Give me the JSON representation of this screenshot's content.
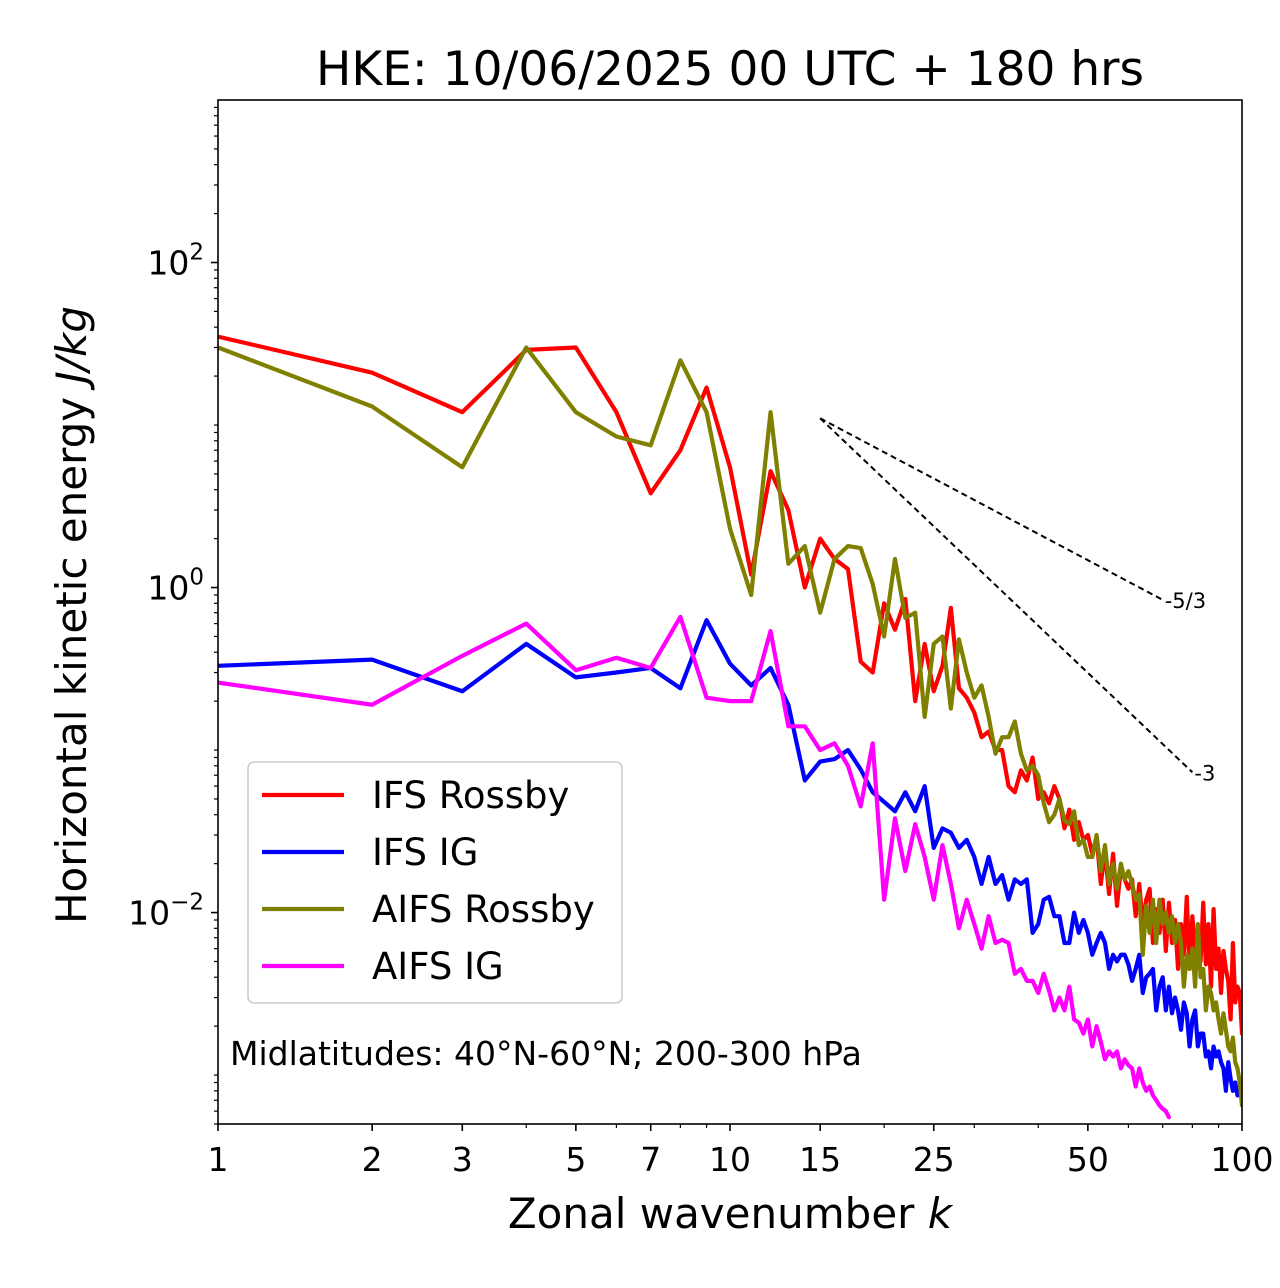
{
  "chart_data": {
    "type": "line",
    "title": "HKE: 10/06/2025 00 UTC + 180 hrs",
    "xlabel_text": "Zonal wavenumber ",
    "xlabel_var": "k",
    "ylabel_text": "Horizontal kinetic energy ",
    "ylabel_unit": "J/kg",
    "xscale": "log",
    "yscale": "log",
    "xlim": [
      1,
      100
    ],
    "ylim": [
      0.0005,
      1000
    ],
    "x_ticks": [
      1,
      2,
      3,
      5,
      7,
      10,
      15,
      25,
      50,
      100
    ],
    "x_tick_labels": [
      "1",
      "2",
      "3",
      "5",
      "7",
      "10",
      "15",
      "25",
      "50",
      "100"
    ],
    "y_ticks": [
      0.01,
      1,
      100
    ],
    "y_tick_base": [
      "10",
      "10",
      "10"
    ],
    "y_tick_exp": [
      "−2",
      "0",
      "2"
    ],
    "grid": false,
    "legend_position": "lower-left",
    "annotation": "Midlatitudes: 40°N-60°N; 200-300 hPa",
    "colors": {
      "ifs_rossby": "#ff0000",
      "ifs_ig": "#0000ff",
      "aifs_rossby": "#808000",
      "aifs_ig": "#ff00ff"
    },
    "reference_slopes": [
      {
        "label": "-5/3",
        "x": [
          15,
          70
        ],
        "y": [
          11,
          0.84
        ]
      },
      {
        "label": "-3",
        "x": [
          15,
          80
        ],
        "y": [
          11,
          0.073
        ]
      }
    ],
    "series": [
      {
        "name": "IFS Rossby",
        "color": "#ff0000",
        "x": [
          1,
          2,
          3,
          4,
          5,
          6,
          7,
          8,
          9,
          10,
          11,
          12,
          13,
          14,
          15,
          16,
          17,
          18,
          19,
          20,
          21,
          22,
          23,
          24,
          25,
          26,
          27,
          28,
          29,
          30,
          31,
          32,
          33,
          34,
          35,
          36,
          37,
          38,
          39,
          40,
          41,
          42,
          43,
          44,
          45,
          46,
          47,
          48,
          49,
          50,
          51,
          52,
          53,
          54,
          55,
          56,
          57,
          58,
          59,
          60,
          61,
          62,
          63,
          64,
          65,
          66,
          67,
          68,
          69,
          70,
          71,
          72,
          73,
          74,
          75,
          76,
          77,
          78,
          79,
          80,
          81,
          82,
          83,
          84,
          85,
          86,
          87,
          88,
          89,
          90,
          91,
          92,
          93,
          94,
          95,
          96,
          97,
          98,
          99,
          100
        ],
        "y": [
          35,
          21,
          12,
          29,
          30,
          12,
          3.8,
          7,
          17,
          5.5,
          1.2,
          5.2,
          3.0,
          1.0,
          2.0,
          1.5,
          1.3,
          0.35,
          0.3,
          0.8,
          0.55,
          0.85,
          0.2,
          0.45,
          0.23,
          0.33,
          0.75,
          0.24,
          0.21,
          0.17,
          0.12,
          0.13,
          0.1,
          0.1,
          0.06,
          0.055,
          0.075,
          0.065,
          0.09,
          0.05,
          0.055,
          0.047,
          0.06,
          0.05,
          0.033,
          0.043,
          0.028,
          0.036,
          0.028,
          0.03,
          0.023,
          0.029,
          0.015,
          0.024,
          0.013,
          0.023,
          0.011,
          0.019,
          0.016,
          0.014,
          0.016,
          0.0095,
          0.015,
          0.0085,
          0.012,
          0.014,
          0.0065,
          0.0105,
          0.0075,
          0.012,
          0.0058,
          0.0115,
          0.0065,
          0.009,
          0.0045,
          0.0085,
          0.0055,
          0.0125,
          0.0045,
          0.0095,
          0.0055,
          0.0075,
          0.005,
          0.0115,
          0.0048,
          0.0085,
          0.0035,
          0.0105,
          0.0045,
          0.006,
          0.0032,
          0.0058,
          0.0045,
          0.0038,
          0.0022,
          0.0065,
          0.0028,
          0.0035,
          0.0032,
          0.0018
        ]
      },
      {
        "name": "IFS IG",
        "color": "#0000ff",
        "x": [
          1,
          2,
          3,
          4,
          5,
          6,
          7,
          8,
          9,
          10,
          11,
          12,
          13,
          14,
          15,
          16,
          17,
          18,
          19,
          20,
          21,
          22,
          23,
          24,
          25,
          26,
          27,
          28,
          29,
          30,
          31,
          32,
          33,
          34,
          35,
          36,
          37,
          38,
          39,
          40,
          41,
          42,
          43,
          44,
          45,
          46,
          47,
          48,
          49,
          50,
          51,
          52,
          53,
          54,
          55,
          56,
          57,
          58,
          59,
          60,
          61,
          62,
          63,
          64,
          65,
          66,
          67,
          68,
          69,
          70,
          71,
          72,
          73,
          74,
          75,
          76,
          77,
          78,
          79,
          80,
          81,
          82,
          83,
          84,
          85,
          86,
          87,
          88,
          89,
          90,
          91,
          92,
          93,
          94,
          95,
          96,
          97,
          98,
          99,
          100
        ],
        "y": [
          0.33,
          0.36,
          0.23,
          0.45,
          0.28,
          0.3,
          0.32,
          0.24,
          0.63,
          0.34,
          0.25,
          0.32,
          0.19,
          0.065,
          0.085,
          0.088,
          0.1,
          0.076,
          0.055,
          0.048,
          0.042,
          0.055,
          0.042,
          0.06,
          0.025,
          0.033,
          0.031,
          0.025,
          0.028,
          0.022,
          0.015,
          0.022,
          0.015,
          0.017,
          0.012,
          0.016,
          0.015,
          0.016,
          0.0075,
          0.0085,
          0.012,
          0.0125,
          0.0095,
          0.0095,
          0.0065,
          0.0065,
          0.01,
          0.0075,
          0.009,
          0.0075,
          0.0055,
          0.0065,
          0.0075,
          0.0065,
          0.0045,
          0.0055,
          0.005,
          0.0055,
          0.0055,
          0.0048,
          0.0038,
          0.0045,
          0.0055,
          0.0032,
          0.004,
          0.0042,
          0.0045,
          0.0025,
          0.0035,
          0.004,
          0.0025,
          0.0035,
          0.0024,
          0.003,
          0.0025,
          0.0019,
          0.0028,
          0.0024,
          0.0015,
          0.0022,
          0.0025,
          0.0015,
          0.0018,
          0.0018,
          0.0013,
          0.0014,
          0.0011,
          0.0015,
          0.0013,
          0.0014,
          0.0012,
          0.0011,
          0.0008,
          0.0012,
          0.00095,
          0.0008,
          0.0009,
          0.00075,
          0.0008,
          0.00085
        ]
      },
      {
        "name": "AIFS Rossby",
        "color": "#808000",
        "x": [
          1,
          2,
          3,
          4,
          5,
          6,
          7,
          8,
          9,
          10,
          11,
          12,
          13,
          14,
          15,
          16,
          17,
          18,
          19,
          20,
          21,
          22,
          23,
          24,
          25,
          26,
          27,
          28,
          29,
          30,
          31,
          32,
          33,
          34,
          35,
          36,
          37,
          38,
          39,
          40,
          41,
          42,
          43,
          44,
          45,
          46,
          47,
          48,
          49,
          50,
          51,
          52,
          53,
          54,
          55,
          56,
          57,
          58,
          59,
          60,
          61,
          62,
          63,
          64,
          65,
          66,
          67,
          68,
          69,
          70,
          71,
          72,
          73,
          74,
          75,
          76,
          77,
          78,
          79,
          80,
          81,
          82,
          83,
          84,
          85,
          86,
          87,
          88,
          89,
          90,
          91,
          92,
          93,
          94,
          95,
          96,
          97,
          98,
          99,
          100
        ],
        "y": [
          30,
          13,
          5.5,
          30,
          12,
          8.5,
          7.5,
          25,
          12,
          2.3,
          0.9,
          12,
          1.4,
          1.8,
          0.7,
          1.5,
          1.8,
          1.75,
          1.05,
          0.5,
          1.5,
          0.65,
          0.7,
          0.16,
          0.45,
          0.5,
          0.18,
          0.48,
          0.3,
          0.21,
          0.25,
          0.16,
          0.095,
          0.12,
          0.12,
          0.15,
          0.095,
          0.075,
          0.08,
          0.07,
          0.047,
          0.036,
          0.04,
          0.05,
          0.037,
          0.035,
          0.042,
          0.026,
          0.028,
          0.022,
          0.022,
          0.03,
          0.018,
          0.026,
          0.015,
          0.02,
          0.014,
          0.02,
          0.016,
          0.018,
          0.015,
          0.012,
          0.013,
          0.0055,
          0.011,
          0.0075,
          0.012,
          0.0065,
          0.012,
          0.0085,
          0.01,
          0.0075,
          0.0095,
          0.0065,
          0.0085,
          0.0065,
          0.0035,
          0.0055,
          0.0045,
          0.006,
          0.0035,
          0.0085,
          0.004,
          0.0045,
          0.0025,
          0.0035,
          0.0032,
          0.0025,
          0.0028,
          0.0022,
          0.0018,
          0.0024,
          0.0019,
          0.0015,
          0.0014,
          0.0017,
          0.0012,
          0.0011,
          0.0009,
          0.00065
        ]
      },
      {
        "name": "AIFS IG",
        "color": "#ff00ff",
        "x": [
          1,
          2,
          3,
          4,
          5,
          6,
          7,
          8,
          9,
          10,
          11,
          12,
          13,
          14,
          15,
          16,
          17,
          18,
          19,
          20,
          21,
          22,
          23,
          24,
          25,
          26,
          27,
          28,
          29,
          30,
          31,
          32,
          33,
          34,
          35,
          36,
          37,
          38,
          39,
          40,
          41,
          42,
          43,
          44,
          45,
          46,
          47,
          48,
          49,
          50,
          51,
          52,
          53,
          54,
          55,
          56,
          57,
          58,
          59,
          60,
          61,
          62,
          63,
          64,
          65,
          66,
          67,
          68,
          69,
          70,
          71,
          72
        ],
        "y": [
          0.26,
          0.19,
          0.38,
          0.6,
          0.31,
          0.37,
          0.32,
          0.66,
          0.21,
          0.2,
          0.2,
          0.54,
          0.14,
          0.14,
          0.1,
          0.11,
          0.08,
          0.045,
          0.11,
          0.012,
          0.038,
          0.018,
          0.035,
          0.022,
          0.012,
          0.026,
          0.015,
          0.008,
          0.012,
          0.0085,
          0.006,
          0.0095,
          0.0065,
          0.0068,
          0.0065,
          0.0042,
          0.0045,
          0.0038,
          0.0038,
          0.0032,
          0.0042,
          0.0033,
          0.0025,
          0.003,
          0.0025,
          0.0035,
          0.0022,
          0.0021,
          0.0018,
          0.0022,
          0.0015,
          0.002,
          0.0016,
          0.00125,
          0.0014,
          0.0013,
          0.0014,
          0.0011,
          0.00125,
          0.00115,
          0.0011,
          0.00085,
          0.0011,
          0.0009,
          0.0008,
          0.00085,
          0.00075,
          0.0007,
          0.00065,
          0.00062,
          0.0006,
          0.00055
        ]
      }
    ]
  }
}
